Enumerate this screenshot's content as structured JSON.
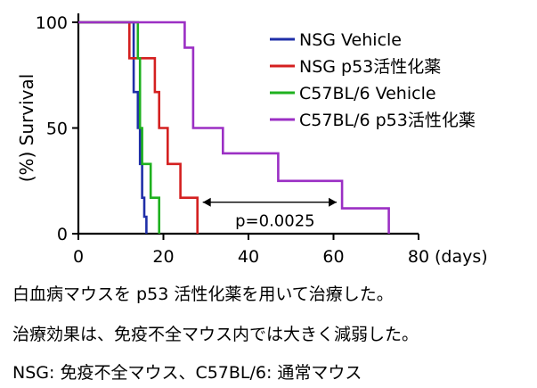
{
  "chart_data": {
    "type": "line",
    "step": true,
    "ylabel": "(%) Survival",
    "xlabel": "(days)",
    "xlim": [
      0,
      80
    ],
    "ylim": [
      0,
      100
    ],
    "xticks": [
      0,
      20,
      40,
      60,
      80
    ],
    "yticks": [
      0,
      50,
      100
    ],
    "xtick_labels": [
      "0",
      "20",
      "40",
      "60",
      "80"
    ],
    "ytick_labels": [
      "0",
      "50",
      "100"
    ],
    "grid": false,
    "legend_position": "top-right",
    "series": [
      {
        "name": "NSG Vehicle",
        "color": "#1f2fa8",
        "points": [
          [
            0,
            100
          ],
          [
            13,
            100
          ],
          [
            13,
            67
          ],
          [
            14,
            67
          ],
          [
            14,
            50
          ],
          [
            14.5,
            50
          ],
          [
            14.5,
            33
          ],
          [
            15,
            33
          ],
          [
            15,
            17
          ],
          [
            15.5,
            17
          ],
          [
            15.5,
            8
          ],
          [
            16,
            8
          ],
          [
            16,
            0
          ]
        ]
      },
      {
        "name": "NSG p53活性化薬",
        "color": "#d42020",
        "points": [
          [
            0,
            100
          ],
          [
            12,
            100
          ],
          [
            12,
            83
          ],
          [
            18,
            83
          ],
          [
            18,
            67
          ],
          [
            19,
            67
          ],
          [
            19,
            50
          ],
          [
            21,
            50
          ],
          [
            21,
            33
          ],
          [
            24,
            33
          ],
          [
            24,
            17
          ],
          [
            28,
            17
          ],
          [
            28,
            0
          ]
        ]
      },
      {
        "name": "C57BL/6 Vehicle",
        "color": "#1fb11f",
        "points": [
          [
            0,
            100
          ],
          [
            14,
            100
          ],
          [
            14,
            83
          ],
          [
            14.5,
            83
          ],
          [
            14.5,
            50
          ],
          [
            15,
            50
          ],
          [
            15,
            33
          ],
          [
            17,
            33
          ],
          [
            17,
            17
          ],
          [
            19,
            17
          ],
          [
            19,
            0
          ]
        ]
      },
      {
        "name": "C57BL/6 p53活性化薬",
        "color": "#9b2fc4",
        "points": [
          [
            0,
            100
          ],
          [
            25,
            100
          ],
          [
            25,
            88
          ],
          [
            27,
            88
          ],
          [
            27,
            50
          ],
          [
            34,
            50
          ],
          [
            34,
            38
          ],
          [
            47,
            38
          ],
          [
            47,
            25
          ],
          [
            62,
            25
          ],
          [
            62,
            12
          ],
          [
            73,
            12
          ],
          [
            73,
            0
          ]
        ]
      }
    ],
    "annotation": {
      "text": "p=0.0025",
      "arrow_from": 28,
      "arrow_to": 62,
      "arrow_y": 17
    }
  },
  "captions": [
    "白血病マウスを p53 活性化薬を用いて治療した。",
    "治療効果は、免疫不全マウス内では大きく減弱した。",
    "NSG: 免疫不全マウス、C57BL/6: 通常マウス"
  ]
}
